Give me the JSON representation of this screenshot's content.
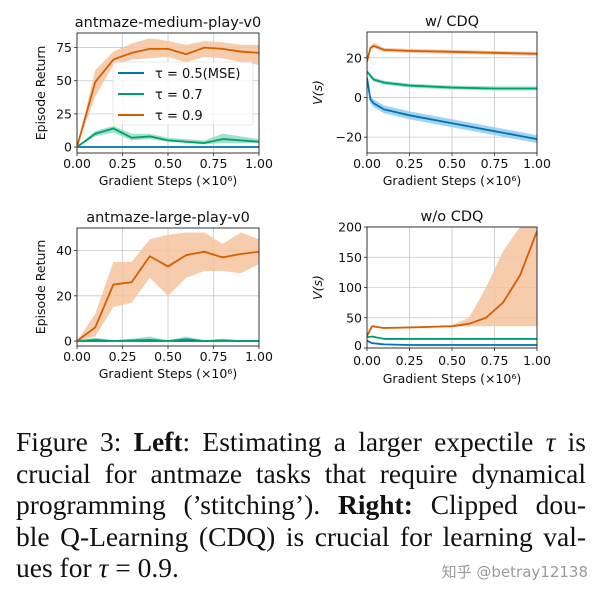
{
  "chart_data": [
    {
      "type": "line",
      "title": "antmaze-medium-play-v0",
      "xlabel": "Gradient Steps (×10⁶)",
      "ylabel": "Episode Return",
      "xlim": [
        0,
        1
      ],
      "ylim": [
        -4.5,
        86
      ],
      "xticks": [
        "0.00",
        "0.25",
        "0.50",
        "0.75",
        "1.00"
      ],
      "yticks": [
        0,
        25,
        50,
        75
      ],
      "grid": true,
      "legend": "upper-center",
      "x": [
        0,
        0.1,
        0.2,
        0.3,
        0.4,
        0.5,
        0.6,
        0.7,
        0.8,
        0.9,
        1.0
      ],
      "series": [
        {
          "name": "τ = 0.5(MSE)",
          "color": "#0173b2",
          "values": [
            0,
            0,
            0,
            0,
            0,
            0,
            0,
            0,
            0,
            0,
            0
          ],
          "lower": [
            0,
            0,
            0,
            0,
            0,
            0,
            0,
            0,
            0,
            0,
            0
          ],
          "upper": [
            0,
            0.5,
            0.5,
            0.5,
            0.5,
            0.5,
            0.5,
            0.5,
            0.5,
            0.5,
            0.5
          ]
        },
        {
          "name": "τ = 0.7",
          "color": "#029e73",
          "values": [
            0,
            10,
            14,
            7,
            8,
            5,
            4,
            3,
            6,
            5,
            4
          ],
          "lower": [
            0,
            8,
            11,
            5,
            6,
            4,
            3,
            2,
            3,
            3,
            3
          ],
          "upper": [
            0,
            12,
            16,
            10,
            10,
            7,
            6,
            5,
            10,
            8,
            6
          ]
        },
        {
          "name": "τ = 0.9",
          "color": "#d55e00",
          "values": [
            0,
            49,
            66,
            71,
            74,
            74,
            70,
            75,
            74,
            72,
            71
          ],
          "lower": [
            0,
            38,
            62,
            66,
            67,
            68,
            64,
            68,
            67,
            64,
            62
          ],
          "upper": [
            0,
            58,
            72,
            78,
            82,
            80,
            77,
            80,
            79,
            77,
            77
          ]
        }
      ]
    },
    {
      "type": "line",
      "title": "antmaze-large-play-v0",
      "xlabel": "Gradient Steps (×10⁶)",
      "ylabel": "Episode Return",
      "xlim": [
        0,
        1
      ],
      "ylim": [
        -2.2,
        50
      ],
      "xticks": [
        "0.00",
        "0.25",
        "0.50",
        "0.75",
        "1.00"
      ],
      "yticks": [
        0,
        20,
        40
      ],
      "grid": true,
      "x": [
        0,
        0.1,
        0.2,
        0.3,
        0.4,
        0.5,
        0.6,
        0.7,
        0.8,
        0.9,
        1.0
      ],
      "series": [
        {
          "color": "#0173b2",
          "values": [
            0,
            0,
            0,
            0,
            0,
            0,
            0,
            0,
            0,
            0,
            0
          ],
          "lower": [
            0,
            0,
            0,
            0,
            0,
            0,
            0,
            0,
            0,
            0,
            0
          ],
          "upper": [
            0,
            0.3,
            0.3,
            0.3,
            0.3,
            0.3,
            0.3,
            0.3,
            0.3,
            0.3,
            0.3
          ]
        },
        {
          "color": "#029e73",
          "values": [
            0,
            0.5,
            0,
            0.3,
            0.5,
            0,
            0.8,
            0,
            0.3,
            0,
            0
          ],
          "lower": [
            0,
            0,
            0,
            0,
            0,
            0,
            0,
            0,
            0,
            0,
            0
          ],
          "upper": [
            0,
            1.5,
            0.3,
            1,
            2,
            0.3,
            2,
            0.3,
            1,
            0.3,
            0.3
          ]
        },
        {
          "color": "#d55e00",
          "values": [
            0,
            6,
            25,
            26,
            37.5,
            33,
            38,
            39.5,
            37,
            38.5,
            39.5
          ],
          "lower": [
            0,
            2,
            15,
            17,
            28,
            20,
            28,
            31,
            31,
            30,
            34
          ],
          "upper": [
            0,
            12,
            35,
            35,
            45,
            47,
            48,
            48,
            43,
            48,
            45
          ]
        }
      ]
    },
    {
      "type": "line",
      "title": "w/ CDQ",
      "xlabel": "Gradient Steps (×10⁶)",
      "ylabel": "V(s)",
      "xlim": [
        0,
        1
      ],
      "ylim": [
        -28,
        33
      ],
      "xticks": [
        "0.00",
        "0.25",
        "0.50",
        "0.75",
        "1.00"
      ],
      "yticks": [
        -20,
        0,
        20
      ],
      "ytick_labels": [
        "−20",
        "0",
        "20"
      ],
      "grid": true,
      "x": [
        0,
        0.02,
        0.04,
        0.1,
        0.25,
        0.5,
        0.75,
        1.0
      ],
      "series": [
        {
          "color": "#0173b2",
          "values": [
            10,
            -1,
            -3,
            -6,
            -9,
            -13,
            -17,
            -21
          ],
          "lower": [
            9,
            -3,
            -5,
            -8,
            -11,
            -15,
            -19,
            -23
          ],
          "upper": [
            11,
            1,
            -1,
            -4,
            -7,
            -11,
            -15,
            -19
          ]
        },
        {
          "color": "#029e73",
          "values": [
            13,
            11,
            9,
            7.5,
            6,
            5,
            4.5,
            4.5
          ],
          "lower": [
            12,
            10,
            8,
            6.5,
            5,
            4,
            3.5,
            3.5
          ],
          "upper": [
            14,
            12,
            10,
            8.5,
            7,
            6,
            5.5,
            5.5
          ]
        },
        {
          "color": "#d55e00",
          "values": [
            18,
            25,
            26,
            24,
            23.5,
            23,
            22.5,
            22
          ],
          "lower": [
            17,
            24,
            25,
            23,
            22.5,
            22,
            21.5,
            21
          ],
          "upper": [
            19,
            26,
            27.5,
            25,
            24.5,
            24,
            23.5,
            23
          ]
        }
      ]
    },
    {
      "type": "line",
      "title": "w/o CDQ",
      "xlabel": "Gradient Steps (×10⁶)",
      "ylabel": "V(s)",
      "xlim": [
        0,
        1
      ],
      "ylim": [
        0,
        200
      ],
      "xticks": [
        "0.00",
        "0.25",
        "0.50",
        "0.75",
        "1.00"
      ],
      "yticks": [
        0,
        50,
        100,
        150,
        200
      ],
      "grid": true,
      "x": [
        0,
        0.03,
        0.1,
        0.25,
        0.5,
        0.6,
        0.7,
        0.8,
        0.9,
        1.0
      ],
      "series": [
        {
          "color": "#0173b2",
          "values": [
            12,
            8,
            6,
            5,
            5,
            5,
            5,
            5,
            5,
            5
          ],
          "lower": [
            11,
            7,
            5,
            4,
            4,
            4,
            4,
            4,
            4,
            4
          ],
          "upper": [
            13,
            9,
            7,
            6,
            6,
            6,
            6,
            6,
            6,
            6
          ]
        },
        {
          "color": "#029e73",
          "values": [
            18,
            19,
            15,
            15,
            15,
            15,
            15,
            15,
            15,
            15
          ],
          "lower": [
            17,
            18,
            14,
            14,
            14,
            14,
            14,
            14,
            14,
            14
          ],
          "upper": [
            19,
            20,
            16,
            16,
            16,
            16,
            16,
            16,
            16,
            16
          ]
        },
        {
          "color": "#d55e00",
          "values": [
            20,
            36,
            33,
            34,
            36,
            40,
            50,
            75,
            120,
            193
          ],
          "lower": [
            19,
            34,
            32,
            33,
            35,
            36,
            36,
            36,
            36,
            36
          ],
          "upper": [
            21,
            38,
            34,
            35,
            38,
            50,
            100,
            160,
            200,
            200
          ]
        }
      ]
    }
  ],
  "caption": {
    "line1_label": "Figure 3: ",
    "line1_bold": "Left",
    "line1_rest": ": Estimating a larger expectile ",
    "tau": "τ",
    "line1_end": " is",
    "line2": "crucial for antmaze tasks that require dynamical",
    "line3_start": "programming (’stitching’). ",
    "line3_bold": "Right:",
    "line3_end": " Clipped dou-",
    "line4": "ble Q-Learning (CDQ) is crucial for learning val-",
    "line5_start": "ues for ",
    "line5_end": " = 0.9."
  },
  "watermark": "知乎 @betray12138"
}
